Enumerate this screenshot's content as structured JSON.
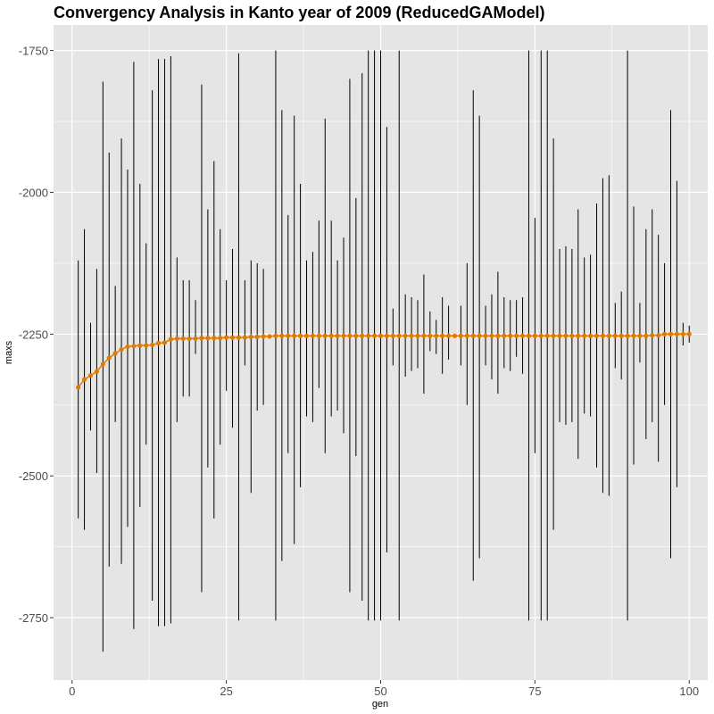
{
  "chart_data": {
    "type": "line",
    "title": "Convergency Analysis in  Kanto year of 2009 (ReducedGAModel)",
    "xlabel": "gen",
    "ylabel": "maxs",
    "xlim": [
      -3,
      103
    ],
    "ylim": [
      -2860,
      -1705
    ],
    "x_ticks": [
      0,
      25,
      50,
      75,
      100
    ],
    "x_tick_labels": [
      "0",
      "25",
      "50",
      "75",
      "100"
    ],
    "y_ticks": [
      -1750,
      -2000,
      -2250,
      -2500,
      -2750
    ],
    "y_tick_labels": [
      "-1750",
      "-2000",
      "-2250",
      "-2500",
      "-2750"
    ],
    "grid": true,
    "background": "#e5e5e5",
    "grid_color": "#ffffff",
    "series": [
      {
        "kind": "line_with_points",
        "color": "#e07b00",
        "x": [
          1,
          2,
          3,
          4,
          5,
          6,
          7,
          8,
          9,
          10,
          11,
          12,
          13,
          14,
          15,
          16,
          17,
          18,
          19,
          20,
          21,
          22,
          23,
          24,
          25,
          26,
          27,
          28,
          29,
          30,
          31,
          32,
          33,
          34,
          35,
          36,
          37,
          38,
          39,
          40,
          41,
          42,
          43,
          44,
          45,
          46,
          47,
          48,
          49,
          50,
          51,
          52,
          53,
          54,
          55,
          56,
          57,
          58,
          59,
          60,
          61,
          62,
          63,
          64,
          65,
          66,
          67,
          68,
          69,
          70,
          71,
          72,
          73,
          74,
          75,
          76,
          77,
          78,
          79,
          80,
          81,
          82,
          83,
          84,
          85,
          86,
          87,
          88,
          89,
          90,
          91,
          92,
          93,
          94,
          95,
          96,
          97,
          98,
          99,
          100
        ],
        "y": [
          -2344,
          -2330,
          -2323,
          -2316,
          -2303,
          -2292,
          -2284,
          -2277,
          -2272,
          -2271,
          -2270,
          -2270,
          -2269,
          -2266,
          -2265,
          -2259,
          -2258,
          -2258,
          -2258,
          -2258,
          -2257,
          -2257,
          -2257,
          -2257,
          -2256,
          -2256,
          -2256,
          -2256,
          -2255,
          -2255,
          -2254,
          -2254,
          -2253,
          -2253,
          -2253,
          -2253,
          -2253,
          -2253,
          -2253,
          -2253,
          -2253,
          -2253,
          -2253,
          -2253,
          -2253,
          -2253,
          -2253,
          -2253,
          -2253,
          -2253,
          -2253,
          -2253,
          -2253,
          -2253,
          -2253,
          -2253,
          -2253,
          -2253,
          -2253,
          -2253,
          -2253,
          -2253,
          -2253,
          -2253,
          -2253,
          -2253,
          -2253,
          -2253,
          -2253,
          -2253,
          -2253,
          -2253,
          -2253,
          -2253,
          -2253,
          -2253,
          -2253,
          -2253,
          -2253,
          -2253,
          -2253,
          -2253,
          -2253,
          -2253,
          -2253,
          -2253,
          -2253,
          -2253,
          -2253,
          -2253,
          -2253,
          -2253,
          -2253,
          -2252,
          -2252,
          -2250,
          -2250,
          -2250,
          -2250,
          -2250
        ]
      },
      {
        "kind": "ranges",
        "color": "#000000",
        "x": [
          1,
          2,
          3,
          4,
          5,
          6,
          7,
          8,
          9,
          10,
          11,
          12,
          13,
          14,
          15,
          16,
          17,
          18,
          19,
          20,
          21,
          22,
          23,
          24,
          25,
          26,
          27,
          28,
          29,
          30,
          31,
          32,
          33,
          34,
          35,
          36,
          37,
          38,
          39,
          40,
          41,
          42,
          43,
          44,
          45,
          46,
          47,
          48,
          49,
          50,
          51,
          52,
          53,
          54,
          55,
          56,
          57,
          58,
          59,
          60,
          61,
          62,
          63,
          64,
          65,
          66,
          67,
          68,
          69,
          70,
          71,
          72,
          73,
          74,
          75,
          76,
          77,
          78,
          79,
          80,
          81,
          82,
          83,
          84,
          85,
          86,
          87,
          88,
          89,
          90,
          91,
          92,
          93,
          94,
          95,
          96,
          97,
          98,
          99,
          100
        ],
        "ymin": [
          -2575,
          -2595,
          -2420,
          -2495,
          -2810,
          -2660,
          -2405,
          -2655,
          -2590,
          -2770,
          -2555,
          -2445,
          -2720,
          -2765,
          -2765,
          -2760,
          -2405,
          -2360,
          -2360,
          -2285,
          -2705,
          -2485,
          -2575,
          -2445,
          -2350,
          -2415,
          -2755,
          -2305,
          -2530,
          -2385,
          -2375,
          -2255,
          -2755,
          -2650,
          -2460,
          -2620,
          -2520,
          -2395,
          -2405,
          -2345,
          -2460,
          -2395,
          -2385,
          -2425,
          -2705,
          -2465,
          -2720,
          -2755,
          -2755,
          -2755,
          -2635,
          -2305,
          -2755,
          -2325,
          -2315,
          -2310,
          -2355,
          -2280,
          -2285,
          -2320,
          -2295,
          -2255,
          -2305,
          -2375,
          -2685,
          -2645,
          -2305,
          -2330,
          -2355,
          -2310,
          -2315,
          -2290,
          -2320,
          -2755,
          -2460,
          -2755,
          -2755,
          -2595,
          -2405,
          -2410,
          -2405,
          -2470,
          -2390,
          -2395,
          -2485,
          -2530,
          -2535,
          -2310,
          -2330,
          -2755,
          -2480,
          -2300,
          -2435,
          -2405,
          -2475,
          -2375,
          -2645,
          -2520,
          -2270,
          -2265
        ],
        "ymax": [
          -2120,
          -2065,
          -2230,
          -2135,
          -1805,
          -1930,
          -2165,
          -1905,
          -1960,
          -1770,
          -1985,
          -2090,
          -1820,
          -1765,
          -1765,
          -1760,
          -2115,
          -2155,
          -2155,
          -2190,
          -1810,
          -2030,
          -1945,
          -2065,
          -2155,
          -2100,
          -1755,
          -2155,
          -2120,
          -2125,
          -2135,
          -2255,
          -1750,
          -1855,
          -2040,
          -1865,
          -1985,
          -2120,
          -2105,
          -2050,
          -1870,
          -2050,
          -2120,
          -2080,
          -1800,
          -2010,
          -1790,
          -1750,
          -1750,
          -1750,
          -1885,
          -2205,
          -1750,
          -2180,
          -2185,
          -2190,
          -2145,
          -2210,
          -2225,
          -2185,
          -2200,
          -2250,
          -2200,
          -2125,
          -1820,
          -1865,
          -2200,
          -2180,
          -2140,
          -2185,
          -2190,
          -2190,
          -2185,
          -1750,
          -2045,
          -1750,
          -1750,
          -1905,
          -2100,
          -2095,
          -2100,
          -2030,
          -2115,
          -2110,
          -2020,
          -1975,
          -1970,
          -2195,
          -2175,
          -1750,
          -2025,
          -2195,
          -2065,
          -2030,
          -2075,
          -2125,
          -1855,
          -1980,
          -2230,
          -2235
        ]
      }
    ]
  }
}
